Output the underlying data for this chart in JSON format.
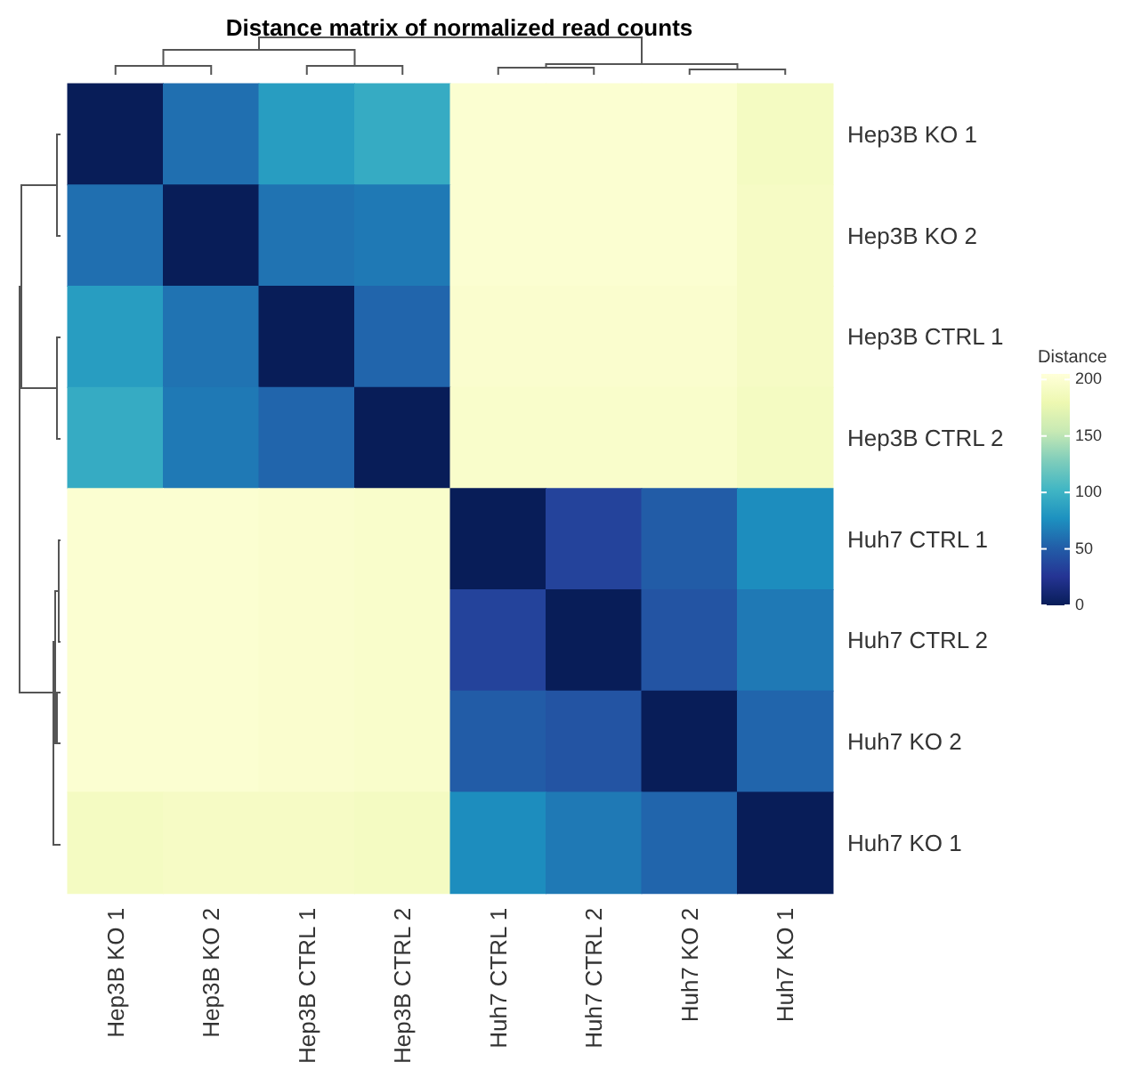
{
  "chart_data": {
    "type": "heatmap",
    "title": "Distance matrix of normalized read counts",
    "clabel": "Distance",
    "categories": [
      "Hep3B KO 1",
      "Hep3B KO 2",
      "Hep3B CTRL 1",
      "Hep3B CTRL 2",
      "Huh7 CTRL 1",
      "Huh7 CTRL 2",
      "Huh7 KO 2",
      "Huh7 KO 1"
    ],
    "y_categories": [
      "Hep3B KO 1",
      "Hep3B KO 2",
      "Hep3B CTRL 1",
      "Hep3B CTRL 2",
      "Huh7 CTRL 1",
      "Huh7 CTRL 2",
      "Huh7 KO 2",
      "Huh7 KO 1"
    ],
    "cells": [
      [
        0,
        60,
        85,
        95,
        200,
        200,
        200,
        190
      ],
      [
        60,
        0,
        62,
        65,
        200,
        200,
        200,
        192
      ],
      [
        85,
        62,
        0,
        55,
        198,
        198,
        198,
        192
      ],
      [
        95,
        65,
        55,
        0,
        196,
        196,
        196,
        190
      ],
      [
        200,
        200,
        198,
        196,
        0,
        35,
        50,
        75
      ],
      [
        200,
        200,
        198,
        196,
        35,
        0,
        45,
        65
      ],
      [
        200,
        200,
        198,
        196,
        50,
        45,
        0,
        55
      ],
      [
        190,
        192,
        192,
        190,
        75,
        65,
        55,
        0
      ]
    ],
    "clim": [
      0,
      205
    ],
    "cticks": [
      0,
      50,
      100,
      150,
      200
    ]
  }
}
